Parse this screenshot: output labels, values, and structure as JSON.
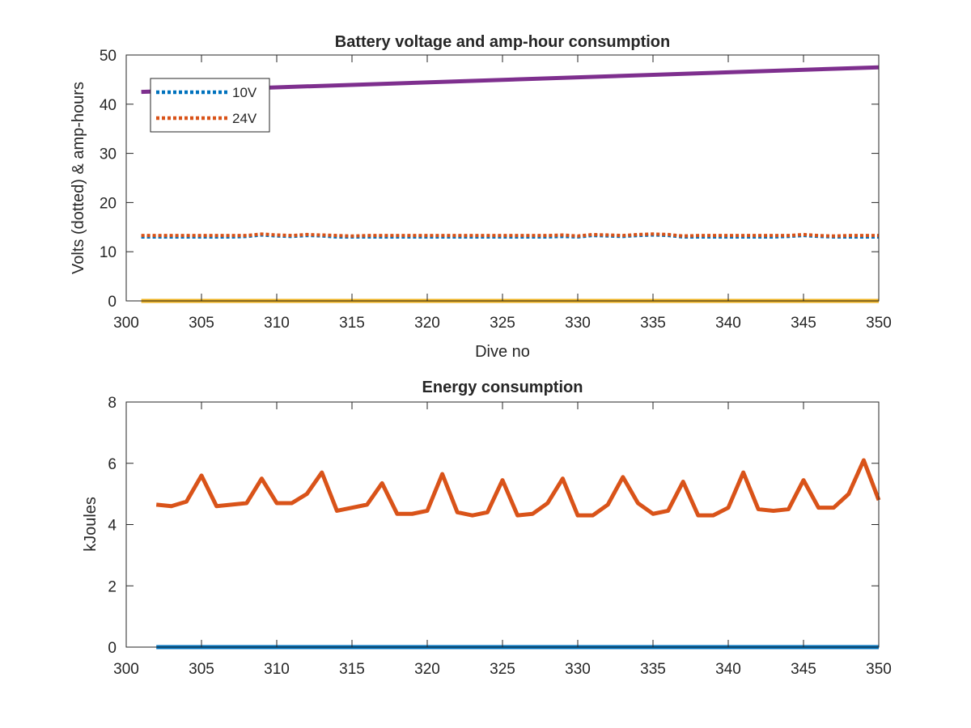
{
  "chart_data": [
    {
      "type": "line",
      "title": "Battery voltage and amp-hour consumption",
      "xlabel": "Dive no",
      "ylabel": "Volts (dotted) & amp-hours",
      "xlim": [
        300,
        350
      ],
      "ylim": [
        0,
        50
      ],
      "xticks": [
        "300",
        "305",
        "310",
        "315",
        "320",
        "325",
        "330",
        "335",
        "340",
        "345",
        "350"
      ],
      "yticks": [
        "0",
        "10",
        "20",
        "30",
        "40",
        "50"
      ],
      "legend": {
        "position": "top-left",
        "entries": [
          "10V",
          "24V"
        ]
      },
      "series": [
        {
          "name": "10V",
          "color": "#0072BD",
          "style": "dotted",
          "x": [
            301,
            302,
            303,
            304,
            305,
            306,
            307,
            308,
            309,
            310,
            311,
            312,
            313,
            314,
            315,
            316,
            317,
            318,
            319,
            320,
            321,
            322,
            323,
            324,
            325,
            326,
            327,
            328,
            329,
            330,
            331,
            332,
            333,
            334,
            335,
            336,
            337,
            338,
            339,
            340,
            341,
            342,
            343,
            344,
            345,
            346,
            347,
            348,
            349,
            350
          ],
          "y": [
            13.0,
            13.0,
            13.0,
            13.0,
            13.0,
            13.0,
            13.0,
            13.1,
            13.4,
            13.2,
            13.1,
            13.3,
            13.2,
            13.0,
            13.0,
            13.0,
            13.0,
            13.0,
            13.0,
            13.0,
            13.0,
            13.0,
            13.0,
            13.0,
            13.0,
            13.0,
            13.0,
            13.0,
            13.1,
            13.0,
            13.3,
            13.2,
            13.1,
            13.3,
            13.4,
            13.3,
            13.0,
            13.0,
            13.0,
            13.0,
            13.0,
            13.0,
            13.0,
            13.1,
            13.3,
            13.1,
            13.0,
            13.0,
            13.0,
            13.0
          ]
        },
        {
          "name": "24V",
          "color": "#D95319",
          "style": "dotted",
          "x": [
            301,
            302,
            303,
            304,
            305,
            306,
            307,
            308,
            309,
            310,
            311,
            312,
            313,
            314,
            315,
            316,
            317,
            318,
            319,
            320,
            321,
            322,
            323,
            324,
            325,
            326,
            327,
            328,
            329,
            330,
            331,
            332,
            333,
            334,
            335,
            336,
            337,
            338,
            339,
            340,
            341,
            342,
            343,
            344,
            345,
            346,
            347,
            348,
            349,
            350
          ],
          "y": [
            13.3,
            13.3,
            13.3,
            13.3,
            13.3,
            13.3,
            13.3,
            13.3,
            13.6,
            13.4,
            13.3,
            13.5,
            13.4,
            13.3,
            13.2,
            13.3,
            13.3,
            13.3,
            13.3,
            13.3,
            13.3,
            13.3,
            13.3,
            13.3,
            13.3,
            13.3,
            13.3,
            13.3,
            13.4,
            13.2,
            13.5,
            13.4,
            13.3,
            13.5,
            13.6,
            13.5,
            13.2,
            13.3,
            13.3,
            13.3,
            13.3,
            13.3,
            13.3,
            13.3,
            13.5,
            13.3,
            13.2,
            13.3,
            13.3,
            13.3
          ]
        },
        {
          "color": "#7E2F8E",
          "style": "solid",
          "x": [
            301,
            350
          ],
          "y": [
            42.5,
            47.5
          ]
        },
        {
          "color": "#EDB120",
          "style": "solid",
          "x": [
            301,
            350
          ],
          "y": [
            0,
            0
          ]
        }
      ]
    },
    {
      "type": "line",
      "title": "Energy consumption",
      "xlabel": "",
      "ylabel": "kJoules",
      "xlim": [
        300,
        350
      ],
      "ylim": [
        0,
        8
      ],
      "xticks": [
        "300",
        "305",
        "310",
        "315",
        "320",
        "325",
        "330",
        "335",
        "340",
        "345",
        "350"
      ],
      "yticks": [
        "0",
        "2",
        "4",
        "6",
        "8"
      ],
      "series": [
        {
          "color": "#D95319",
          "style": "solid",
          "x": [
            302,
            303,
            304,
            305,
            306,
            307,
            308,
            309,
            310,
            311,
            312,
            313,
            314,
            315,
            316,
            317,
            318,
            319,
            320,
            321,
            322,
            323,
            324,
            325,
            326,
            327,
            328,
            329,
            330,
            331,
            332,
            333,
            334,
            335,
            336,
            337,
            338,
            339,
            340,
            341,
            342,
            343,
            344,
            345,
            346,
            347,
            348,
            349,
            350
          ],
          "y": [
            4.65,
            4.6,
            4.75,
            5.6,
            4.6,
            4.65,
            4.7,
            5.5,
            4.7,
            4.7,
            5.0,
            5.7,
            4.45,
            4.55,
            4.65,
            5.35,
            4.35,
            4.35,
            4.45,
            5.65,
            4.4,
            4.3,
            4.4,
            5.45,
            4.3,
            4.35,
            4.7,
            5.5,
            4.3,
            4.3,
            4.65,
            5.55,
            4.7,
            4.35,
            4.45,
            5.4,
            4.3,
            4.3,
            4.55,
            5.7,
            4.5,
            4.45,
            4.5,
            5.45,
            4.55,
            4.55,
            5.0,
            6.1,
            4.8
          ]
        },
        {
          "color": "#0072BD",
          "style": "solid",
          "x": [
            302,
            350
          ],
          "y": [
            0,
            0
          ]
        }
      ]
    }
  ]
}
